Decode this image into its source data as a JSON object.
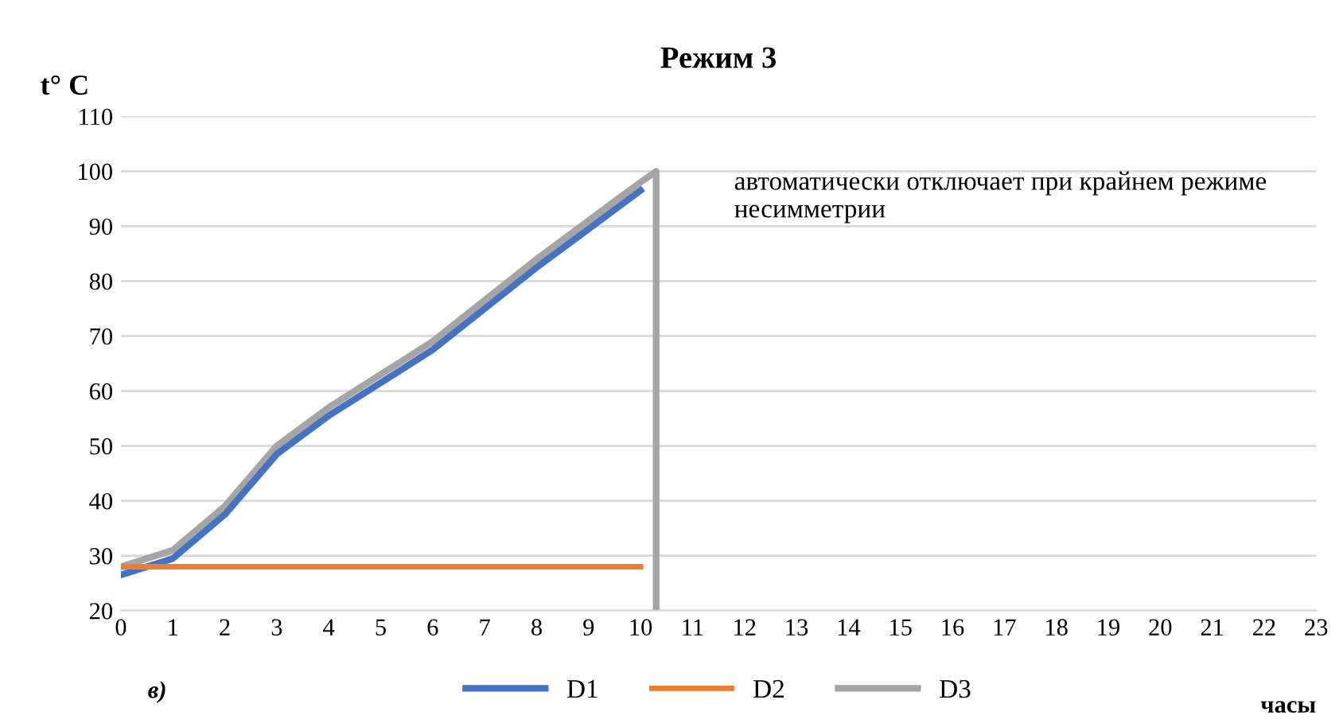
{
  "chart_data": {
    "type": "line",
    "title": "Режим 3",
    "ylabel": "t° C",
    "xlabel": "часы",
    "annotations": [
      {
        "text": "автоматически отключает при крайнем режиме несимметрии",
        "x": 10.3,
        "y": 100
      },
      "в)"
    ],
    "x": [
      0,
      1,
      2,
      3,
      4,
      5,
      6,
      7,
      8,
      9,
      10
    ],
    "series": [
      {
        "name": "D1",
        "color": "#4472c4",
        "values": [
          26.5,
          29.5,
          37.5,
          48.5,
          55.5,
          61.5,
          67.5,
          75,
          82.5,
          89.5,
          96.5
        ]
      },
      {
        "name": "D2",
        "color": "#ed7d31",
        "values": [
          28,
          28,
          28,
          28,
          28,
          28,
          28,
          28,
          28,
          28,
          28
        ]
      },
      {
        "name": "D3",
        "color": "#a5a5a5",
        "x": [
          0,
          1,
          2,
          3,
          4,
          5,
          6,
          7,
          8,
          9,
          10,
          10.3,
          10.3
        ],
        "values": [
          28,
          31,
          39,
          50,
          57,
          63,
          69,
          76.5,
          84,
          91,
          98,
          100,
          20
        ]
      }
    ],
    "xlim": [
      0,
      23
    ],
    "xticks": [
      0,
      1,
      2,
      3,
      4,
      5,
      6,
      7,
      8,
      9,
      10,
      11,
      12,
      13,
      14,
      15,
      16,
      17,
      18,
      19,
      20,
      21,
      22,
      23
    ],
    "ylim": [
      20,
      110
    ],
    "yticks": [
      20,
      30,
      40,
      50,
      60,
      70,
      80,
      90,
      100,
      110
    ],
    "grid": "y",
    "legend": "bottom",
    "marker": "none",
    "line_style": "solid"
  }
}
